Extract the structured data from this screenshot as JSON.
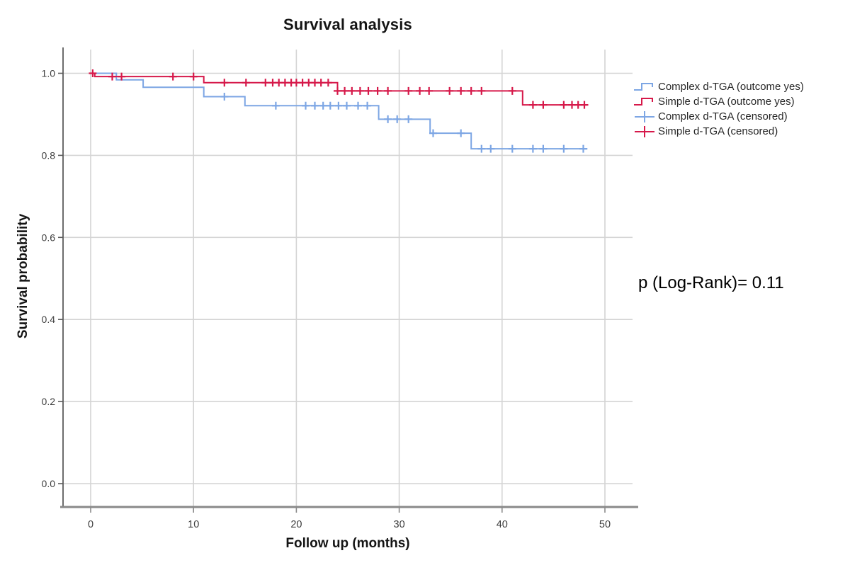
{
  "title": "Survival analysis",
  "annotation": {
    "p_value_text": "p (Log-Rank)= 0.11"
  },
  "axes": {
    "x_label": "Follow up (months)",
    "y_label": "Survival probability"
  },
  "colors": {
    "complex_blue": "#7da6e4",
    "simple_red": "#d6194a",
    "grid": "#d4d4d4",
    "axis_bottom": "#8a8a8a",
    "axis_left": "#5c5c5c",
    "tick_text": "#3d3d3d"
  },
  "legend": {
    "items": [
      {
        "label": "Complex d-TGA (outcome yes)",
        "color": "#7da6e4",
        "glyph": "step"
      },
      {
        "label": "Simple d-TGA (outcome yes)",
        "color": "#d6194a",
        "glyph": "step"
      },
      {
        "label": "Complex d-TGA (censored)",
        "color": "#7da6e4",
        "glyph": "censor"
      },
      {
        "label": "Simple d-TGA (censored)",
        "color": "#d6194a",
        "glyph": "censor"
      }
    ]
  },
  "chart_data": {
    "type": "line",
    "subtype": "kaplan-meier-step",
    "title": "Survival analysis",
    "xlabel": "Follow up (months)",
    "ylabel": "Survival probability",
    "xticks": [
      0,
      10,
      20,
      30,
      40,
      50
    ],
    "yticks": [
      0.0,
      0.2,
      0.4,
      0.6,
      0.8,
      1.0
    ],
    "xlim": [
      -2.7,
      52.7
    ],
    "ylim": [
      -0.057,
      1.058
    ],
    "grid": true,
    "legend_position": "right",
    "annotation": "p (Log-Rank)= 0.11",
    "series": [
      {
        "name": "Complex d-TGA (outcome yes)",
        "color": "#7da6e4",
        "end_time": 48.3,
        "steps": [
          [
            0,
            1.0
          ],
          [
            2.5,
            0.984
          ],
          [
            5.1,
            0.966
          ],
          [
            11,
            0.943
          ],
          [
            15,
            0.921
          ],
          [
            28,
            0.888
          ],
          [
            33,
            0.854
          ],
          [
            37,
            0.816
          ]
        ],
        "censored": [
          [
            13,
            0.943
          ],
          [
            18,
            0.921
          ],
          [
            20.9,
            0.921
          ],
          [
            21.8,
            0.921
          ],
          [
            22.6,
            0.921
          ],
          [
            23.3,
            0.921
          ],
          [
            24.1,
            0.921
          ],
          [
            24.9,
            0.921
          ],
          [
            26,
            0.921
          ],
          [
            26.9,
            0.921
          ],
          [
            28.9,
            0.888
          ],
          [
            29.8,
            0.888
          ],
          [
            30.9,
            0.888
          ],
          [
            33.3,
            0.854
          ],
          [
            36,
            0.854
          ],
          [
            38,
            0.816
          ],
          [
            38.9,
            0.816
          ],
          [
            41,
            0.816
          ],
          [
            43,
            0.816
          ],
          [
            44,
            0.816
          ],
          [
            46,
            0.816
          ],
          [
            47.9,
            0.816
          ]
        ]
      },
      {
        "name": "Simple d-TGA (outcome yes)",
        "color": "#d6194a",
        "end_time": 48.3,
        "steps": [
          [
            0,
            1.0
          ],
          [
            0.4,
            0.992
          ],
          [
            11,
            0.977
          ],
          [
            24,
            0.957
          ],
          [
            42,
            0.923
          ]
        ],
        "censored": [
          [
            0.2,
            1.0
          ],
          [
            2.1,
            0.992
          ],
          [
            3,
            0.992
          ],
          [
            8,
            0.992
          ],
          [
            10,
            0.992
          ],
          [
            13,
            0.977
          ],
          [
            15.1,
            0.977
          ],
          [
            17,
            0.977
          ],
          [
            17.7,
            0.977
          ],
          [
            18.3,
            0.977
          ],
          [
            18.9,
            0.977
          ],
          [
            19.5,
            0.977
          ],
          [
            20,
            0.977
          ],
          [
            20.6,
            0.977
          ],
          [
            21.2,
            0.977
          ],
          [
            21.8,
            0.977
          ],
          [
            22.4,
            0.977
          ],
          [
            23.1,
            0.977
          ],
          [
            24,
            0.957
          ],
          [
            24.7,
            0.957
          ],
          [
            25.4,
            0.957
          ],
          [
            26.2,
            0.957
          ],
          [
            27,
            0.957
          ],
          [
            27.9,
            0.957
          ],
          [
            28.9,
            0.957
          ],
          [
            30.9,
            0.957
          ],
          [
            32,
            0.957
          ],
          [
            32.9,
            0.957
          ],
          [
            34.9,
            0.957
          ],
          [
            36,
            0.957
          ],
          [
            37,
            0.957
          ],
          [
            38,
            0.957
          ],
          [
            41,
            0.957
          ],
          [
            43,
            0.923
          ],
          [
            44,
            0.923
          ],
          [
            46,
            0.923
          ],
          [
            46.8,
            0.923
          ],
          [
            47.4,
            0.923
          ],
          [
            48,
            0.923
          ]
        ]
      }
    ]
  }
}
